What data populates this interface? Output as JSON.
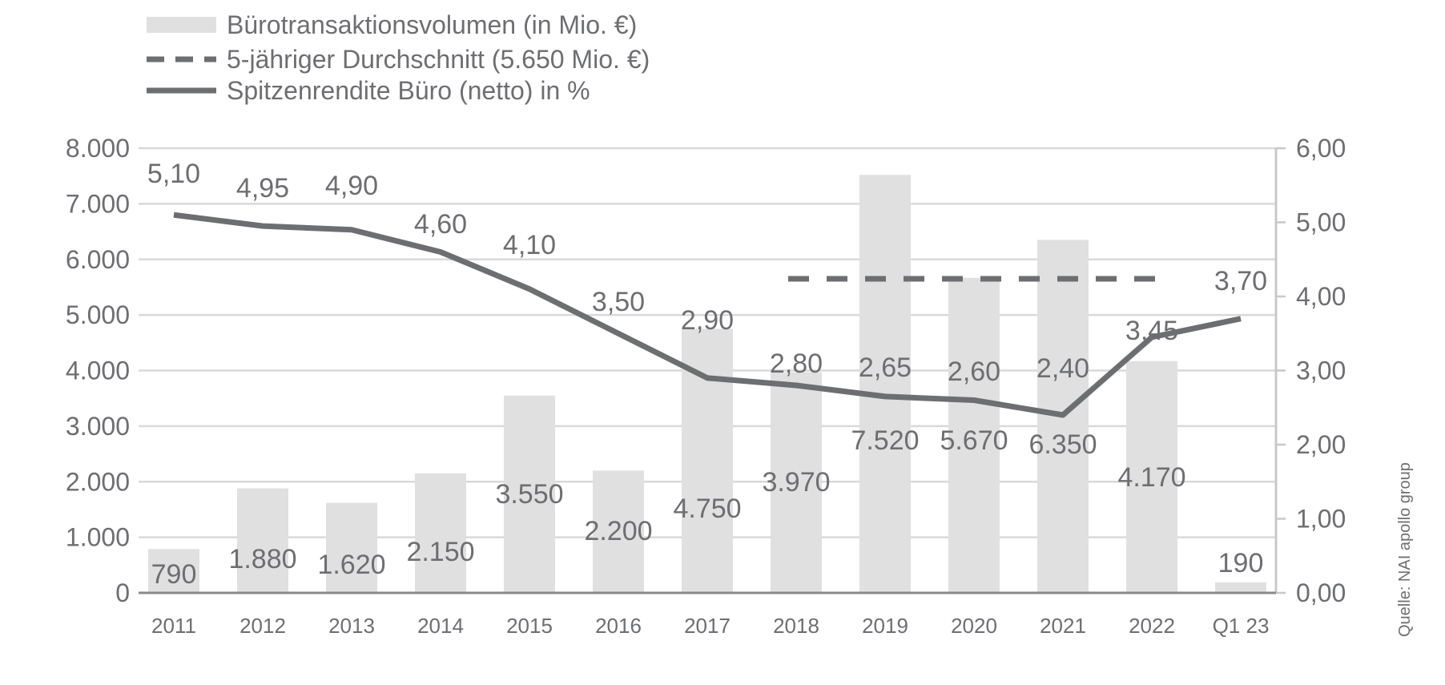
{
  "chart_data": {
    "type": "bar+line",
    "categories": [
      "2011",
      "2012",
      "2013",
      "2014",
      "2015",
      "2016",
      "2017",
      "2018",
      "2019",
      "2020",
      "2021",
      "2022",
      "Q1 23"
    ],
    "series": [
      {
        "name": "Bürotransaktionsvolumen (in Mio. €)",
        "type": "bar",
        "axis": "left",
        "values": [
          790,
          1880,
          1620,
          2150,
          3550,
          2200,
          4750,
          3970,
          7520,
          5670,
          6350,
          4170,
          190
        ],
        "labels": [
          "790",
          "1.880",
          "1.620",
          "2.150",
          "3.550",
          "2.200",
          "4.750",
          "3.970",
          "7.520",
          "5.670",
          "6.350",
          "4.170",
          "190"
        ]
      },
      {
        "name": "5-jähriger Durchschnitt (5.650 Mio. €)",
        "type": "dashed-line",
        "axis": "left",
        "value": 5650,
        "from": "2018",
        "to": "2022"
      },
      {
        "name": "Spitzenrendite Büro (netto) in %",
        "type": "line",
        "axis": "right",
        "values": [
          5.1,
          4.95,
          4.9,
          4.6,
          4.1,
          3.5,
          2.9,
          2.8,
          2.65,
          2.6,
          2.4,
          3.45,
          3.7
        ],
        "labels": [
          "5,10",
          "4,95",
          "4,90",
          "4,60",
          "4,10",
          "3,50",
          "2,90",
          "2,80",
          "2,65",
          "2,60",
          "2,40",
          "3,45",
          "3,70"
        ]
      }
    ],
    "left_axis": {
      "ylim": [
        0,
        8000
      ],
      "ticks": [
        "0",
        "1.000",
        "2.000",
        "3.000",
        "4.000",
        "5.000",
        "6.000",
        "7.000",
        "8.000"
      ]
    },
    "right_axis": {
      "ylim": [
        0,
        6
      ],
      "ticks": [
        "0,00",
        "1,00",
        "2,00",
        "3,00",
        "4,00",
        "5,00",
        "6,00"
      ]
    },
    "grid": true,
    "legend_position": "top-left",
    "source": "Quelle: NAI apollo group",
    "colors": {
      "bar": "#e0e0e0",
      "line": "#6d6e71",
      "grid": "#d9d9d9",
      "text": "#6d6e71"
    }
  }
}
